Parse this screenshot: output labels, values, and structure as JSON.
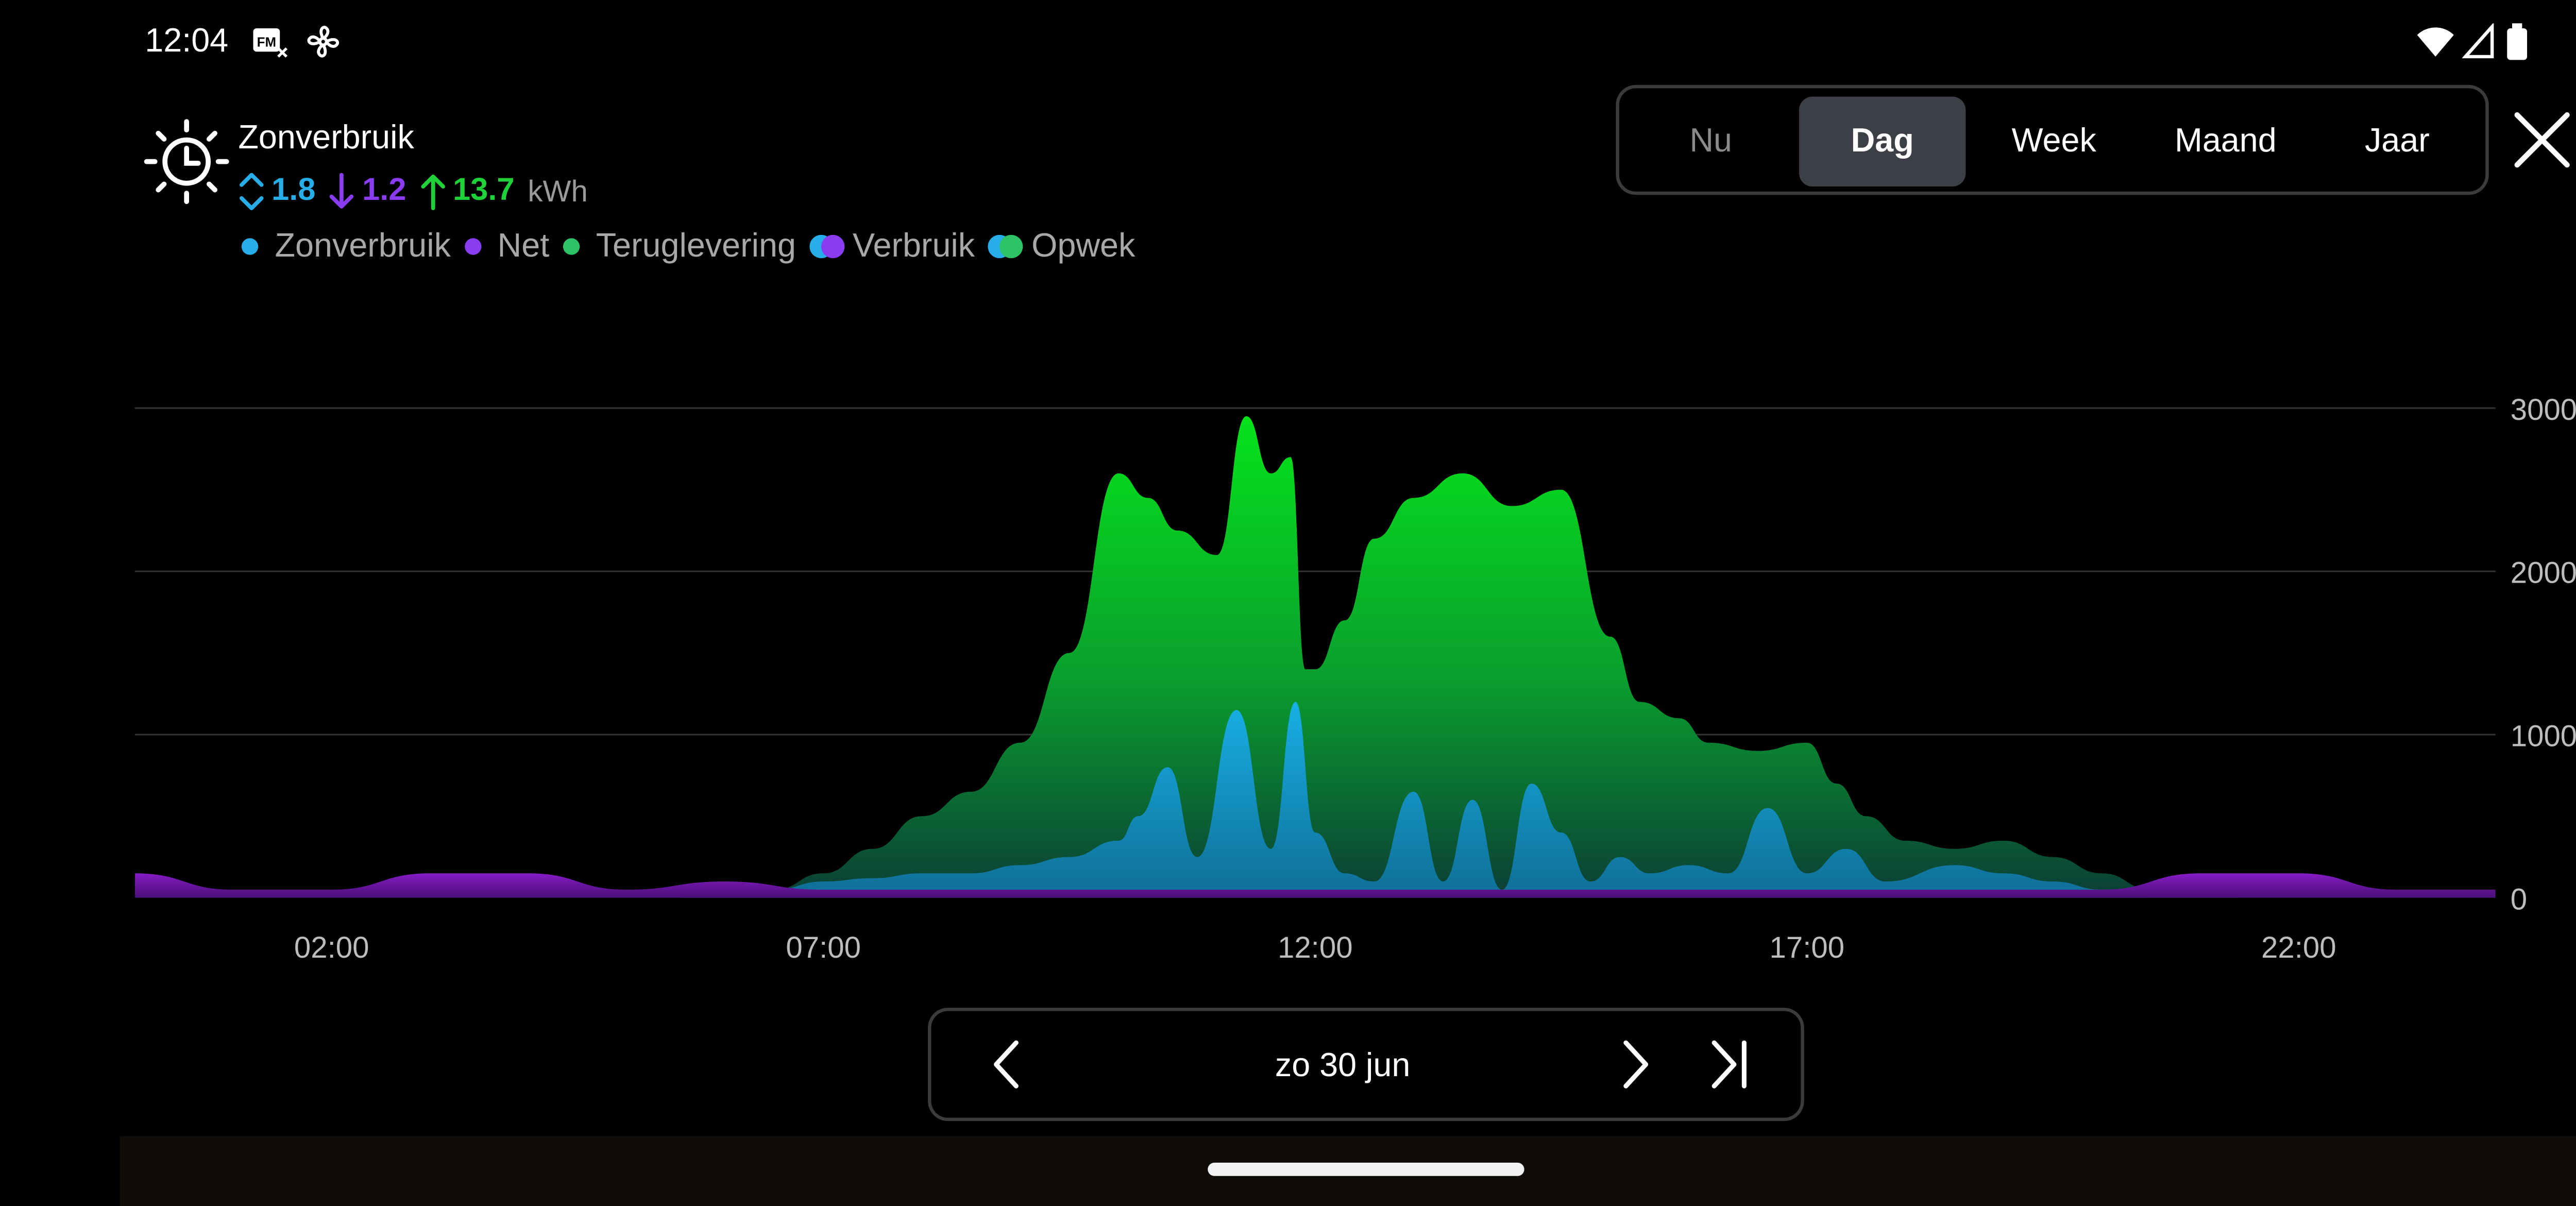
{
  "status_bar": {
    "time": "12:04",
    "left_icons": [
      "fm-app-icon",
      "fan-icon"
    ],
    "right_icons": [
      "wifi-icon",
      "cellular-signal-icon",
      "battery-icon"
    ]
  },
  "header": {
    "icon": "sun-clock-icon",
    "title": "Zonverbruik",
    "stats": [
      {
        "icon": "double-chevron-icon",
        "value": "1.8",
        "color": "#27aee8"
      },
      {
        "icon": "arrow-down-icon",
        "value": "1.2",
        "color": "#8a3cf0"
      },
      {
        "icon": "arrow-up-icon",
        "value": "13.7",
        "color": "#1fd23a"
      }
    ],
    "unit": "kWh"
  },
  "legend": {
    "items": [
      {
        "label": "Zonverbruik",
        "type": "dot",
        "colors": [
          "#27aee8"
        ]
      },
      {
        "label": "Net",
        "type": "dot",
        "colors": [
          "#8a3cf0"
        ]
      },
      {
        "label": "Teruglevering",
        "type": "dot",
        "colors": [
          "#2ec267"
        ]
      },
      {
        "label": "Verbruik",
        "type": "double-dot",
        "colors": [
          "#27aee8",
          "#8a3cf0"
        ]
      },
      {
        "label": "Opwek",
        "type": "double-dot",
        "colors": [
          "#27aee8",
          "#2ec267"
        ]
      }
    ]
  },
  "period_tabs": {
    "items": [
      "Nu",
      "Dag",
      "Week",
      "Maand",
      "Jaar"
    ],
    "active": "Dag",
    "disabled": [
      "Nu"
    ]
  },
  "close_icon": "close-icon",
  "date_nav": {
    "date": "zo 30 jun",
    "prev_icon": "chevron-left-icon",
    "next_icon": "chevron-right-icon",
    "last_icon": "skip-to-end-icon"
  },
  "chart_data": {
    "type": "area",
    "x_unit": "hour",
    "xlim": [
      0,
      24
    ],
    "ylim": [
      0,
      3000
    ],
    "x_ticks": [
      "02:00",
      "07:00",
      "12:00",
      "17:00",
      "22:00"
    ],
    "x_tick_values": [
      2,
      7,
      12,
      17,
      22
    ],
    "y_ticks": [
      0,
      1000,
      2000,
      3000
    ],
    "y_axis_side": "right",
    "grid": true,
    "colors": {
      "Net": "#8a18d6",
      "Zonverbruik": "#1aa7dc",
      "Opwek_top": "#05e51a",
      "Opwek_bottom": "#0a4a3a"
    },
    "series": [
      {
        "name": "Opwek",
        "x": [
          5.5,
          6.5,
          7.0,
          7.5,
          8.0,
          8.5,
          9.0,
          9.5,
          10.0,
          10.3,
          10.6,
          11.0,
          11.3,
          11.55,
          11.75,
          11.9,
          12.0,
          12.3,
          12.6,
          13.0,
          13.5,
          14.0,
          14.5,
          15.0,
          15.3,
          15.7,
          16.0,
          16.5,
          17.0,
          17.3,
          17.6,
          18.0,
          18.5,
          19.0,
          19.5,
          20.0,
          20.5,
          21.5
        ],
        "values": [
          0,
          50,
          150,
          300,
          500,
          650,
          950,
          1500,
          2600,
          2450,
          2250,
          2100,
          2950,
          2600,
          2700,
          1400,
          1400,
          1700,
          2200,
          2450,
          2600,
          2400,
          2500,
          1600,
          1200,
          1100,
          950,
          900,
          950,
          700,
          500,
          350,
          300,
          350,
          250,
          150,
          50,
          0
        ]
      },
      {
        "name": "Zonverbruik",
        "x": [
          5.5,
          6.5,
          7.0,
          7.5,
          8.0,
          8.5,
          9.0,
          9.5,
          10.0,
          10.2,
          10.5,
          10.8,
          11.2,
          11.55,
          11.8,
          12.0,
          12.3,
          12.6,
          13.0,
          13.3,
          13.6,
          13.9,
          14.2,
          14.5,
          14.8,
          15.1,
          15.4,
          15.8,
          16.2,
          16.6,
          17.0,
          17.4,
          17.8,
          18.5,
          19.0,
          19.5,
          20.0,
          20.5
        ],
        "values": [
          0,
          50,
          100,
          120,
          150,
          150,
          200,
          250,
          350,
          500,
          800,
          250,
          1150,
          300,
          1200,
          400,
          150,
          100,
          650,
          100,
          600,
          50,
          700,
          400,
          100,
          250,
          150,
          200,
          150,
          550,
          150,
          300,
          100,
          200,
          150,
          100,
          50,
          0
        ]
      },
      {
        "name": "Net",
        "x": [
          0,
          1,
          2,
          3,
          4,
          5,
          6,
          7,
          20,
          21,
          22,
          23,
          24
        ],
        "values": [
          150,
          50,
          50,
          150,
          150,
          50,
          100,
          50,
          50,
          150,
          150,
          50,
          50
        ]
      }
    ]
  }
}
